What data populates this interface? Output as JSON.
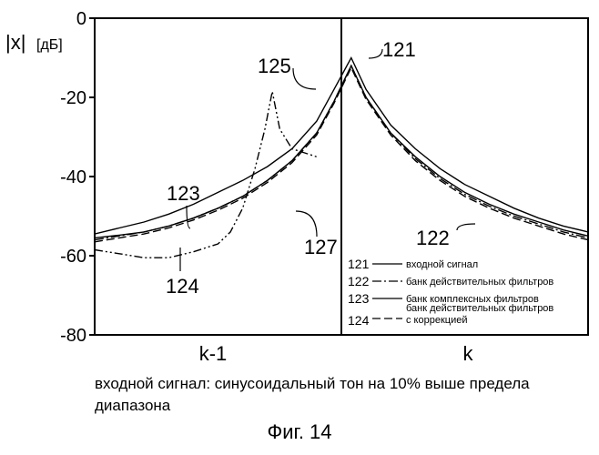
{
  "chart_data": {
    "type": "line",
    "ylabel": "|x| [дБ]",
    "ylabel_parts": [
      "|x|",
      "[дБ]"
    ],
    "ylim": [
      -80,
      0
    ],
    "yticks": [
      0,
      -20,
      -40,
      -60,
      -80
    ],
    "ytick_labels": [
      "0",
      "-20",
      "-40",
      "-60",
      "-80"
    ],
    "x_category_labels": [
      "k-1",
      "k"
    ],
    "grid": false,
    "legend": [
      {
        "id": "121",
        "style": "solid",
        "label": "входной сигнал"
      },
      {
        "id": "122",
        "style": "dashdot",
        "label": "банк действительных фильтров"
      },
      {
        "id": "123",
        "style": "solid",
        "label": "банк комплексных фильтров"
      },
      {
        "id": "124",
        "style": "dashed",
        "label_lines": [
          "банк действительных фильтров",
          "с коррекцией"
        ]
      }
    ],
    "annotations": [
      "121",
      "122",
      "123",
      "124",
      "125",
      "127"
    ],
    "series": [
      {
        "id": "121",
        "style": "solid",
        "points": [
          [
            0.0,
            -54.5
          ],
          [
            0.1,
            -53
          ],
          [
            0.2,
            -51.5
          ],
          [
            0.3,
            -49.5
          ],
          [
            0.4,
            -47
          ],
          [
            0.5,
            -44
          ],
          [
            0.6,
            -41
          ],
          [
            0.7,
            -37.5
          ],
          [
            0.8,
            -33
          ],
          [
            0.9,
            -26
          ],
          [
            0.97,
            -18
          ],
          [
            1.04,
            -10
          ],
          [
            1.1,
            -18
          ],
          [
            1.2,
            -27
          ],
          [
            1.3,
            -33
          ],
          [
            1.4,
            -38
          ],
          [
            1.5,
            -42
          ],
          [
            1.6,
            -45
          ],
          [
            1.7,
            -48
          ],
          [
            1.8,
            -50.5
          ],
          [
            1.9,
            -52.5
          ],
          [
            2.0,
            -54
          ]
        ]
      },
      {
        "id": "122",
        "style": "dashdot",
        "points": [
          [
            0.0,
            -56
          ],
          [
            0.1,
            -55
          ],
          [
            0.2,
            -54
          ],
          [
            0.3,
            -52.5
          ],
          [
            0.4,
            -50.5
          ],
          [
            0.5,
            -48
          ],
          [
            0.6,
            -45
          ],
          [
            0.7,
            -41
          ],
          [
            0.8,
            -36
          ],
          [
            0.9,
            -29
          ],
          [
            0.97,
            -21
          ],
          [
            1.04,
            -12
          ],
          [
            1.1,
            -20
          ],
          [
            1.2,
            -29
          ],
          [
            1.3,
            -35.5
          ],
          [
            1.4,
            -40.5
          ],
          [
            1.5,
            -44.5
          ],
          [
            1.6,
            -47.5
          ],
          [
            1.7,
            -50
          ],
          [
            1.8,
            -52
          ],
          [
            1.9,
            -54
          ],
          [
            2.0,
            -55.5
          ]
        ]
      },
      {
        "id": "123",
        "style": "solid",
        "points": [
          [
            0.0,
            -55.5
          ],
          [
            0.1,
            -54.8
          ],
          [
            0.2,
            -54
          ],
          [
            0.3,
            -52.5
          ],
          [
            0.4,
            -50.5
          ],
          [
            0.5,
            -48
          ],
          [
            0.6,
            -45
          ],
          [
            0.7,
            -41
          ],
          [
            0.8,
            -36
          ],
          [
            0.9,
            -29
          ],
          [
            0.97,
            -21
          ],
          [
            1.04,
            -12
          ],
          [
            1.1,
            -20
          ],
          [
            1.2,
            -29
          ],
          [
            1.3,
            -35
          ],
          [
            1.4,
            -40
          ],
          [
            1.5,
            -44
          ],
          [
            1.6,
            -47
          ],
          [
            1.7,
            -49.5
          ],
          [
            1.8,
            -51.5
          ],
          [
            1.9,
            -53.5
          ],
          [
            2.0,
            -55
          ]
        ]
      },
      {
        "id": "124",
        "style": "dashed",
        "points": [
          [
            0.0,
            -56.5
          ],
          [
            0.1,
            -55.5
          ],
          [
            0.2,
            -54.5
          ],
          [
            0.3,
            -53
          ],
          [
            0.4,
            -51
          ],
          [
            0.5,
            -48.5
          ],
          [
            0.6,
            -45.5
          ],
          [
            0.7,
            -41.5
          ],
          [
            0.8,
            -36.5
          ],
          [
            0.9,
            -29.5
          ],
          [
            0.97,
            -21.5
          ],
          [
            1.04,
            -12.5
          ],
          [
            1.1,
            -20.5
          ],
          [
            1.2,
            -29.5
          ],
          [
            1.3,
            -36
          ],
          [
            1.4,
            -41
          ],
          [
            1.5,
            -45
          ],
          [
            1.6,
            -48
          ],
          [
            1.7,
            -50.5
          ],
          [
            1.8,
            -52.5
          ],
          [
            1.9,
            -54.5
          ],
          [
            2.0,
            -56
          ]
        ]
      },
      {
        "id": "125",
        "style": "dashdotdot",
        "points": [
          [
            0.0,
            -58.5
          ],
          [
            0.1,
            -59.5
          ],
          [
            0.2,
            -60.5
          ],
          [
            0.3,
            -60.5
          ],
          [
            0.4,
            -59
          ],
          [
            0.5,
            -57
          ],
          [
            0.55,
            -54
          ],
          [
            0.6,
            -48
          ],
          [
            0.65,
            -38
          ],
          [
            0.69,
            -28
          ],
          [
            0.72,
            -18.5
          ],
          [
            0.75,
            -28
          ],
          [
            0.8,
            -33
          ],
          [
            0.9,
            -35
          ]
        ]
      }
    ]
  },
  "caption_lines": [
    "входной сигнал: синусоидальный тон на 10% выше предела",
    "диапазона"
  ],
  "figure_label": "Фиг. 14"
}
